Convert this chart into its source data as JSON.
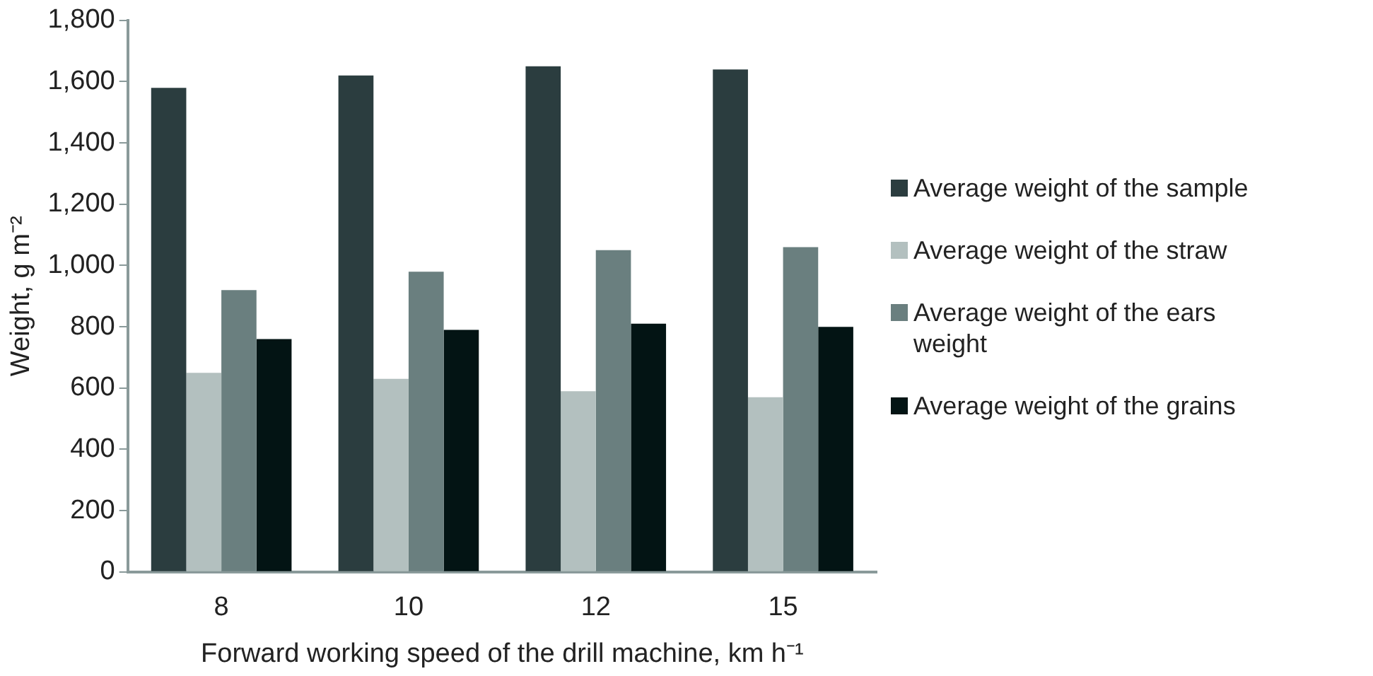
{
  "chart_data": {
    "type": "bar",
    "xlabel": "Forward working speed of the drill machine, km h⁻¹",
    "ylabel": "Weight, g m⁻²",
    "categories": [
      "8",
      "10",
      "12",
      "15"
    ],
    "series": [
      {
        "name": "Average weight of the sample",
        "color": "#2b3d3f",
        "values": [
          1580,
          1620,
          1650,
          1640
        ]
      },
      {
        "name": "Average weight of the straw",
        "color": "#b3c0bf",
        "values": [
          650,
          630,
          590,
          570
        ]
      },
      {
        "name": "Average weight of the ears weight",
        "color": "#6a7f7f",
        "values": [
          920,
          980,
          1050,
          1060
        ]
      },
      {
        "name": "Average weight of the grains",
        "color": "#031414",
        "values": [
          760,
          790,
          810,
          800
        ]
      }
    ],
    "ylim": [
      0,
      1800
    ],
    "yticks": [
      0,
      200,
      400,
      600,
      800,
      {
        "value": 1000,
        "label": "1,000"
      },
      {
        "value": 1200,
        "label": "1,200"
      },
      {
        "value": 1400,
        "label": "1,400"
      },
      {
        "value": 1600,
        "label": "1,600"
      },
      {
        "value": 1800,
        "label": "1,800"
      }
    ],
    "grid": false,
    "legend": "right"
  }
}
